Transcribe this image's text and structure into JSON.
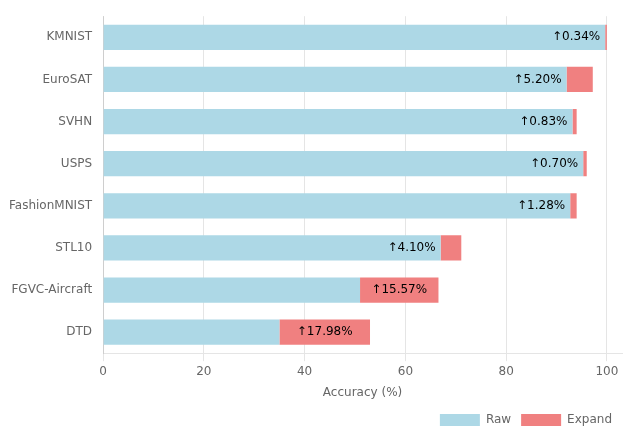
{
  "chart_data": {
    "type": "bar",
    "orientation": "horizontal",
    "stacked": true,
    "categories": [
      "DTD",
      "FGVC-Aircraft",
      "STL10",
      "FashionMNIST",
      "USPS",
      "SVHN",
      "EuroSAT",
      "KMNIST"
    ],
    "series": [
      {
        "name": "Raw",
        "color": "#ADD8E6",
        "values": [
          35.0,
          51.0,
          67.0,
          92.72,
          95.3,
          93.17,
          92.0,
          99.66
        ]
      },
      {
        "name": "Expand",
        "color": "#F08080",
        "values": [
          17.98,
          15.57,
          4.1,
          1.28,
          0.7,
          0.83,
          5.2,
          0.34
        ]
      }
    ],
    "annotations": [
      "↑17.98%",
      "↑15.57%",
      "↑4.10%",
      "↑1.28%",
      "↑0.70%",
      "↑0.83%",
      "↑5.20%",
      "↑0.34%"
    ],
    "xlabel": "Accuracy (%)",
    "xlim": [
      0,
      103
    ],
    "xticks": [
      0,
      20,
      40,
      60,
      80,
      100
    ],
    "grid": true,
    "legend": "lower right"
  }
}
